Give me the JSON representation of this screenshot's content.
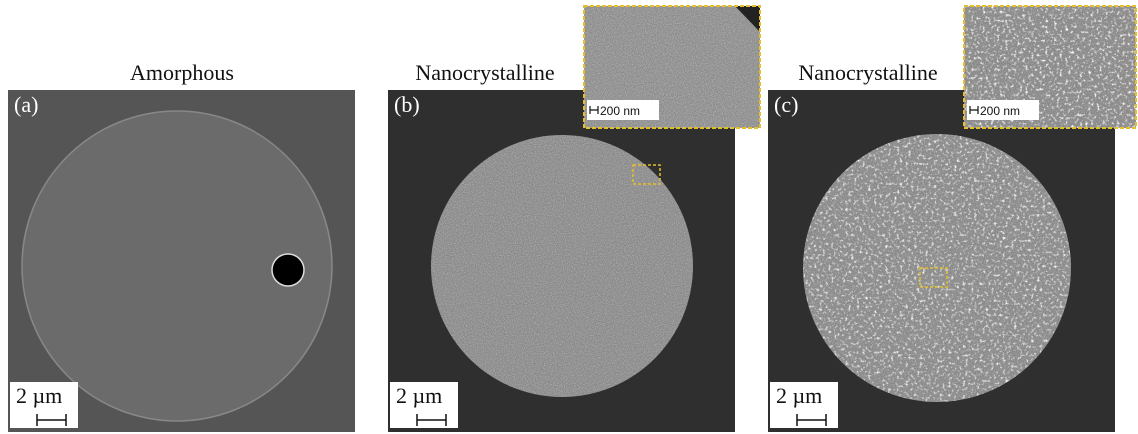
{
  "panels": [
    {
      "title": "Amorphous",
      "label": "(a)",
      "scale_bar": "2 µm"
    },
    {
      "title": "Nanocrystalline",
      "label": "(b)",
      "scale_bar": "2 µm",
      "inset_scale_bar": "200 nm"
    },
    {
      "title": "Nanocrystalline",
      "label": "(c)",
      "scale_bar": "2 µm",
      "inset_scale_bar": "200 nm"
    }
  ]
}
